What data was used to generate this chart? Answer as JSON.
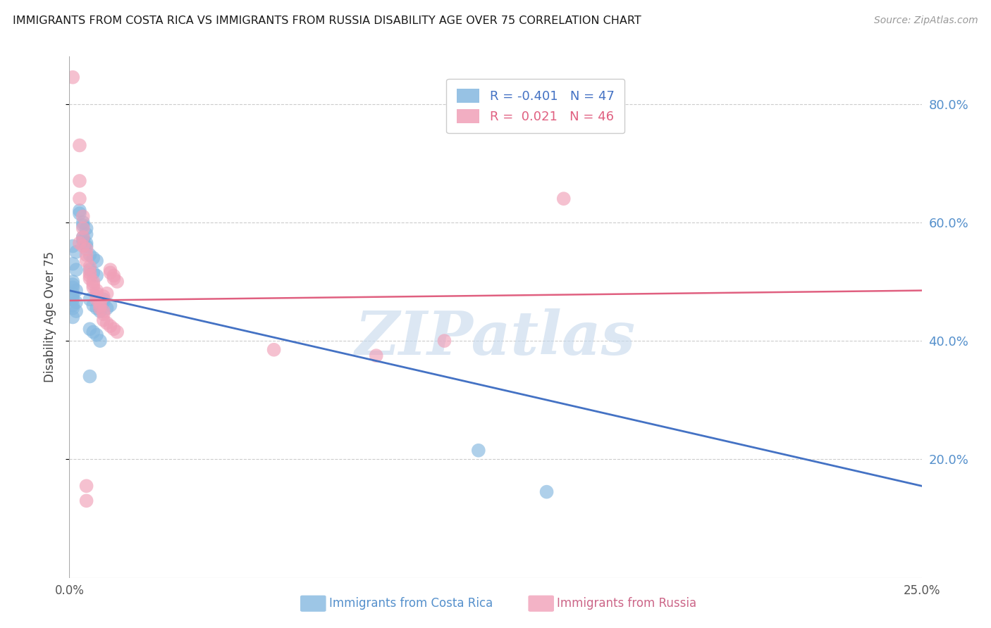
{
  "title": "IMMIGRANTS FROM COSTA RICA VS IMMIGRANTS FROM RUSSIA DISABILITY AGE OVER 75 CORRELATION CHART",
  "source": "Source: ZipAtlas.com",
  "ylabel": "Disability Age Over 75",
  "xmin": 0.0,
  "xmax": 0.25,
  "ymin": 0.0,
  "ymax": 0.88,
  "yticks": [
    0.2,
    0.4,
    0.6,
    0.8
  ],
  "ytick_labels": [
    "20.0%",
    "40.0%",
    "60.0%",
    "80.0%"
  ],
  "xtick_left_label": "0.0%",
  "xtick_right_label": "25.0%",
  "blue_R": "-0.401",
  "blue_N": "47",
  "pink_R": "0.021",
  "pink_N": "46",
  "blue_color": "#85b8e0",
  "pink_color": "#f0a0b8",
  "blue_line_color": "#4472c4",
  "pink_line_color": "#e06080",
  "blue_scatter": [
    [
      0.001,
      0.56
    ],
    [
      0.002,
      0.55
    ],
    [
      0.001,
      0.53
    ],
    [
      0.002,
      0.52
    ],
    [
      0.001,
      0.5
    ],
    [
      0.001,
      0.495
    ],
    [
      0.001,
      0.49
    ],
    [
      0.002,
      0.485
    ],
    [
      0.001,
      0.48
    ],
    [
      0.001,
      0.475
    ],
    [
      0.001,
      0.47
    ],
    [
      0.002,
      0.465
    ],
    [
      0.001,
      0.46
    ],
    [
      0.001,
      0.455
    ],
    [
      0.002,
      0.45
    ],
    [
      0.001,
      0.44
    ],
    [
      0.003,
      0.62
    ],
    [
      0.003,
      0.615
    ],
    [
      0.004,
      0.6
    ],
    [
      0.004,
      0.595
    ],
    [
      0.005,
      0.59
    ],
    [
      0.005,
      0.58
    ],
    [
      0.004,
      0.575
    ],
    [
      0.004,
      0.57
    ],
    [
      0.005,
      0.565
    ],
    [
      0.005,
      0.56
    ],
    [
      0.006,
      0.545
    ],
    [
      0.007,
      0.54
    ],
    [
      0.008,
      0.535
    ],
    [
      0.006,
      0.52
    ],
    [
      0.007,
      0.515
    ],
    [
      0.008,
      0.51
    ],
    [
      0.006,
      0.47
    ],
    [
      0.007,
      0.46
    ],
    [
      0.008,
      0.455
    ],
    [
      0.009,
      0.45
    ],
    [
      0.01,
      0.47
    ],
    [
      0.01,
      0.465
    ],
    [
      0.012,
      0.46
    ],
    [
      0.011,
      0.455
    ],
    [
      0.006,
      0.42
    ],
    [
      0.007,
      0.415
    ],
    [
      0.008,
      0.41
    ],
    [
      0.009,
      0.4
    ],
    [
      0.006,
      0.34
    ],
    [
      0.12,
      0.215
    ],
    [
      0.14,
      0.145
    ]
  ],
  "pink_scatter": [
    [
      0.001,
      0.845
    ],
    [
      0.003,
      0.73
    ],
    [
      0.003,
      0.67
    ],
    [
      0.003,
      0.64
    ],
    [
      0.004,
      0.61
    ],
    [
      0.004,
      0.59
    ],
    [
      0.004,
      0.575
    ],
    [
      0.003,
      0.565
    ],
    [
      0.004,
      0.56
    ],
    [
      0.005,
      0.555
    ],
    [
      0.005,
      0.545
    ],
    [
      0.005,
      0.535
    ],
    [
      0.006,
      0.525
    ],
    [
      0.006,
      0.515
    ],
    [
      0.006,
      0.51
    ],
    [
      0.006,
      0.505
    ],
    [
      0.007,
      0.5
    ],
    [
      0.007,
      0.495
    ],
    [
      0.007,
      0.49
    ],
    [
      0.008,
      0.485
    ],
    [
      0.008,
      0.48
    ],
    [
      0.008,
      0.475
    ],
    [
      0.008,
      0.47
    ],
    [
      0.009,
      0.465
    ],
    [
      0.009,
      0.46
    ],
    [
      0.009,
      0.455
    ],
    [
      0.01,
      0.45
    ],
    [
      0.01,
      0.445
    ],
    [
      0.01,
      0.475
    ],
    [
      0.011,
      0.48
    ],
    [
      0.012,
      0.52
    ],
    [
      0.012,
      0.515
    ],
    [
      0.013,
      0.51
    ],
    [
      0.013,
      0.505
    ],
    [
      0.014,
      0.5
    ],
    [
      0.01,
      0.435
    ],
    [
      0.011,
      0.43
    ],
    [
      0.012,
      0.425
    ],
    [
      0.013,
      0.42
    ],
    [
      0.014,
      0.415
    ],
    [
      0.005,
      0.155
    ],
    [
      0.005,
      0.13
    ],
    [
      0.06,
      0.385
    ],
    [
      0.09,
      0.375
    ],
    [
      0.11,
      0.4
    ],
    [
      0.145,
      0.64
    ]
  ],
  "blue_trendline": [
    [
      0.0,
      0.485
    ],
    [
      0.25,
      0.155
    ]
  ],
  "pink_trendline": [
    [
      0.0,
      0.468
    ],
    [
      0.25,
      0.485
    ]
  ],
  "watermark": "ZIPatlas",
  "watermark_color": "#c5d8ec",
  "watermark_alpha": 0.6,
  "legend_R_blue": "R = -0.401",
  "legend_N_blue": "N = 47",
  "legend_R_pink": "R =  0.021",
  "legend_N_pink": "N = 46",
  "bottom_label_blue": "Immigrants from Costa Rica",
  "bottom_label_pink": "Immigrants from Russia"
}
